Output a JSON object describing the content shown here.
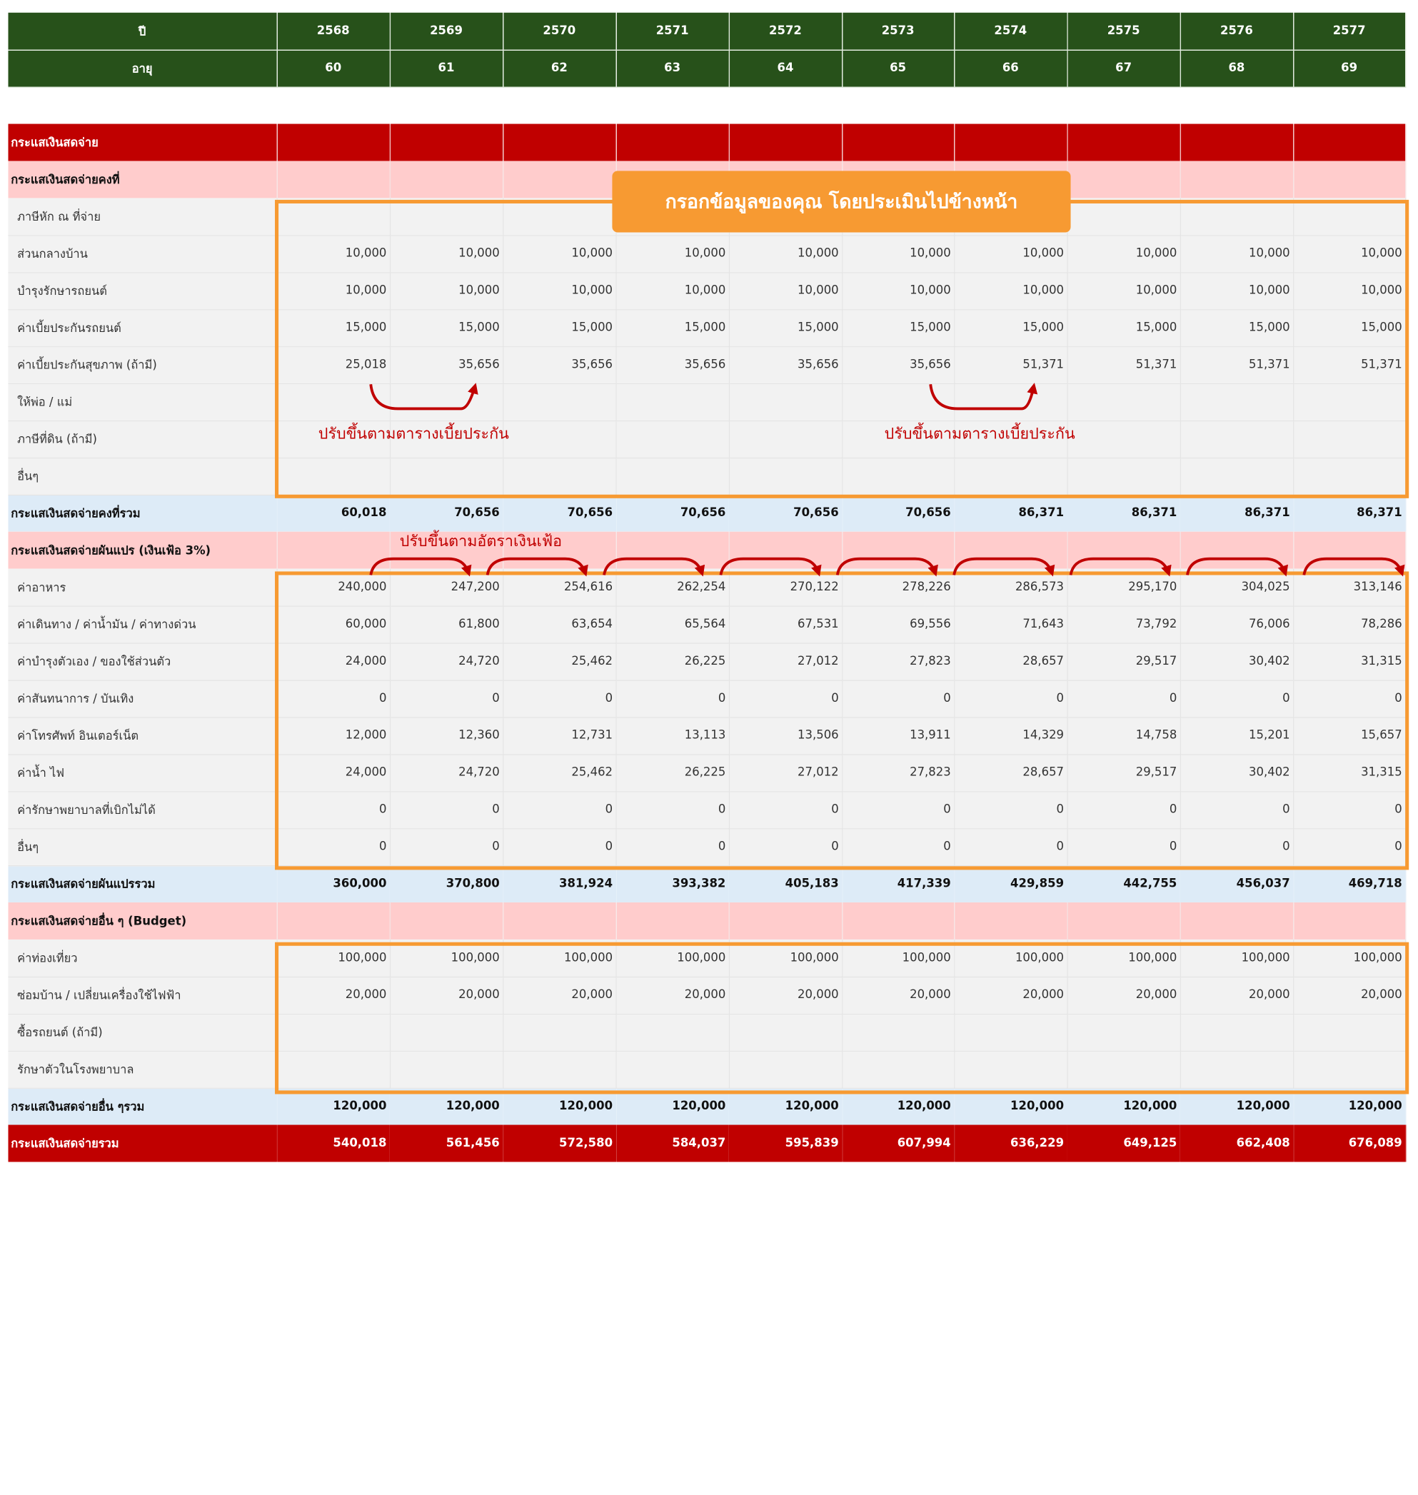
{
  "header": {
    "rows": [
      {
        "label": "ปี",
        "cells": [
          "2568",
          "2569",
          "2570",
          "2571",
          "2572",
          "2573",
          "2574",
          "2575",
          "2576",
          "2577"
        ]
      },
      {
        "label": "อายุ",
        "cells": [
          "60",
          "61",
          "62",
          "63",
          "64",
          "65",
          "66",
          "67",
          "68",
          "69"
        ]
      }
    ]
  },
  "rows": [
    {
      "kind": "title",
      "label": "กระแสเงินสดจ่าย",
      "cells": [
        "",
        "",
        "",
        "",
        "",
        "",
        "",
        "",
        "",
        ""
      ]
    },
    {
      "kind": "section",
      "label": "กระแสเงินสดจ่ายคงที่",
      "cells": [
        "",
        "",
        "",
        "",
        "",
        "",
        "",
        "",
        "",
        ""
      ]
    },
    {
      "kind": "item",
      "label": "ภาษีหัก ณ ที่จ่าย",
      "cells": [
        "",
        "",
        "",
        "",
        "",
        "",
        "",
        "",
        "",
        ""
      ]
    },
    {
      "kind": "item",
      "label": "ส่วนกลางบ้าน",
      "cells": [
        "10,000",
        "10,000",
        "10,000",
        "10,000",
        "10,000",
        "10,000",
        "10,000",
        "10,000",
        "10,000",
        "10,000"
      ]
    },
    {
      "kind": "item",
      "label": "บำรุงรักษารถยนต์",
      "cells": [
        "10,000",
        "10,000",
        "10,000",
        "10,000",
        "10,000",
        "10,000",
        "10,000",
        "10,000",
        "10,000",
        "10,000"
      ]
    },
    {
      "kind": "item",
      "label": "ค่าเบี้ยประกันรถยนต์",
      "cells": [
        "15,000",
        "15,000",
        "15,000",
        "15,000",
        "15,000",
        "15,000",
        "15,000",
        "15,000",
        "15,000",
        "15,000"
      ]
    },
    {
      "kind": "item",
      "label": "ค่าเบี้ยประกันสุขภาพ (ถ้ามี)",
      "cells": [
        "25,018",
        "35,656",
        "35,656",
        "35,656",
        "35,656",
        "35,656",
        "51,371",
        "51,371",
        "51,371",
        "51,371"
      ]
    },
    {
      "kind": "item",
      "label": "ให้พ่อ / แม่",
      "cells": [
        "",
        "",
        "",
        "",
        "",
        "",
        "",
        "",
        "",
        ""
      ]
    },
    {
      "kind": "item",
      "label": "ภาษีที่ดิน (ถ้ามี)",
      "cells": [
        "",
        "",
        "",
        "",
        "",
        "",
        "",
        "",
        "",
        ""
      ]
    },
    {
      "kind": "item",
      "label": "อื่นๆ",
      "cells": [
        "",
        "",
        "",
        "",
        "",
        "",
        "",
        "",
        "",
        ""
      ]
    },
    {
      "kind": "sub",
      "label": "กระแสเงินสดจ่ายคงที่รวม",
      "cells": [
        "60,018",
        "70,656",
        "70,656",
        "70,656",
        "70,656",
        "70,656",
        "86,371",
        "86,371",
        "86,371",
        "86,371"
      ]
    },
    {
      "kind": "section",
      "label": "กระแสเงินสดจ่ายผันแปร (เงินเฟ้อ 3%)",
      "cells": [
        "",
        "",
        "",
        "",
        "",
        "",
        "",
        "",
        "",
        ""
      ]
    },
    {
      "kind": "item",
      "label": "ค่าอาหาร",
      "cells": [
        "240,000",
        "247,200",
        "254,616",
        "262,254",
        "270,122",
        "278,226",
        "286,573",
        "295,170",
        "304,025",
        "313,146"
      ]
    },
    {
      "kind": "item",
      "label": "ค่าเดินทาง / ค่าน้ำมัน / ค่าทางด่วน",
      "cells": [
        "60,000",
        "61,800",
        "63,654",
        "65,564",
        "67,531",
        "69,556",
        "71,643",
        "73,792",
        "76,006",
        "78,286"
      ]
    },
    {
      "kind": "item",
      "label": "ค่าบำรุงตัวเอง / ของใช้ส่วนตัว",
      "cells": [
        "24,000",
        "24,720",
        "25,462",
        "26,225",
        "27,012",
        "27,823",
        "28,657",
        "29,517",
        "30,402",
        "31,315"
      ]
    },
    {
      "kind": "item",
      "label": "ค่าสันทนาการ / บันเทิง",
      "cells": [
        "0",
        "0",
        "0",
        "0",
        "0",
        "0",
        "0",
        "0",
        "0",
        "0"
      ]
    },
    {
      "kind": "item",
      "label": "ค่าโทรศัพท์ อินเตอร์เน็ต",
      "cells": [
        "12,000",
        "12,360",
        "12,731",
        "13,113",
        "13,506",
        "13,911",
        "14,329",
        "14,758",
        "15,201",
        "15,657"
      ]
    },
    {
      "kind": "item",
      "label": "ค่าน้ำ ไฟ",
      "cells": [
        "24,000",
        "24,720",
        "25,462",
        "26,225",
        "27,012",
        "27,823",
        "28,657",
        "29,517",
        "30,402",
        "31,315"
      ]
    },
    {
      "kind": "item",
      "label": "ค่ารักษาพยาบาลที่เบิกไม่ได้",
      "cells": [
        "0",
        "0",
        "0",
        "0",
        "0",
        "0",
        "0",
        "0",
        "0",
        "0"
      ]
    },
    {
      "kind": "item",
      "label": "อื่นๆ",
      "cells": [
        "0",
        "0",
        "0",
        "0",
        "0",
        "0",
        "0",
        "0",
        "0",
        "0"
      ]
    },
    {
      "kind": "sub",
      "label": "กระแสเงินสดจ่ายผันแปรรวม",
      "cells": [
        "360,000",
        "370,800",
        "381,924",
        "393,382",
        "405,183",
        "417,339",
        "429,859",
        "442,755",
        "456,037",
        "469,718"
      ]
    },
    {
      "kind": "section",
      "label": "กระแสเงินสดจ่ายอื่น ๆ (Budget)",
      "cells": [
        "",
        "",
        "",
        "",
        "",
        "",
        "",
        "",
        "",
        ""
      ]
    },
    {
      "kind": "item",
      "label": "ค่าท่องเที่ยว",
      "cells": [
        "100,000",
        "100,000",
        "100,000",
        "100,000",
        "100,000",
        "100,000",
        "100,000",
        "100,000",
        "100,000",
        "100,000"
      ]
    },
    {
      "kind": "item",
      "label": "ซ่อมบ้าน / เปลี่ยนเครื่องใช้ไฟฟ้า",
      "cells": [
        "20,000",
        "20,000",
        "20,000",
        "20,000",
        "20,000",
        "20,000",
        "20,000",
        "20,000",
        "20,000",
        "20,000"
      ]
    },
    {
      "kind": "item",
      "label": "ซื้อรถยนต์ (ถ้ามี)",
      "cells": [
        "",
        "",
        "",
        "",
        "",
        "",
        "",
        "",
        "",
        ""
      ]
    },
    {
      "kind": "item",
      "label": "รักษาตัวในโรงพยาบาล",
      "cells": [
        "",
        "",
        "",
        "",
        "",
        "",
        "",
        "",
        "",
        ""
      ]
    },
    {
      "kind": "sub",
      "label": "กระแสเงินสดจ่ายอื่น ๆรวม",
      "cells": [
        "120,000",
        "120,000",
        "120,000",
        "120,000",
        "120,000",
        "120,000",
        "120,000",
        "120,000",
        "120,000",
        "120,000"
      ]
    },
    {
      "kind": "grand",
      "label": "กระแสเงินสดจ่ายรวม",
      "cells": [
        "540,018",
        "561,456",
        "572,580",
        "584,037",
        "595,839",
        "607,994",
        "636,229",
        "649,125",
        "662,408",
        "676,089"
      ]
    }
  ],
  "annotations": {
    "banner": "กรอกข้อมูลของคุณ โดยประเมินไปข้างหน้า",
    "note_left": "ปรับขึ้นตามตารางเบี้ยประกัน",
    "note_right": "ปรับขึ้นตามตารางเบี้ยประกัน",
    "note_inflation": "ปรับขึ้นตามอัตราเงินเฟ้อ"
  },
  "colors": {
    "header_green": "#27511a",
    "title_red": "#c00000",
    "section_pink": "#ffcccc",
    "subtotal_blue": "#ddebf7",
    "item_gray": "#f2f2f2",
    "highlight_orange": "#f79a32",
    "arrow_red": "#c00000"
  }
}
